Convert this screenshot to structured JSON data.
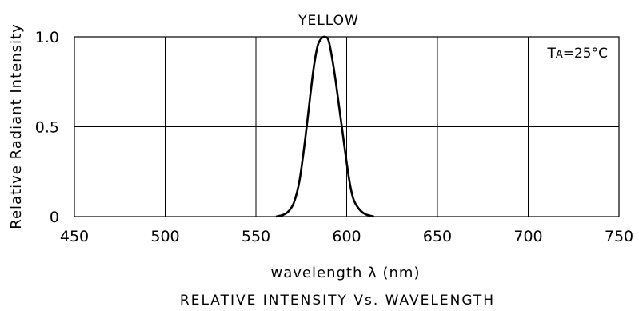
{
  "chart_data": {
    "type": "line",
    "title": "YELLOW",
    "xlabel": "wavelength λ (nm)",
    "ylabel": "Relative Radiant Intensity",
    "caption": "RELATIVE INTENSITY Vs. WAVELENGTH",
    "annotation": "TA=25°C",
    "xlim": [
      450,
      750
    ],
    "ylim": [
      0,
      1.0
    ],
    "x_ticks": [
      450,
      500,
      550,
      600,
      650,
      700,
      750
    ],
    "x_tick_labels": [
      "450",
      "500",
      "550",
      "600",
      "650",
      "700",
      "750"
    ],
    "y_ticks": [
      0,
      0.5,
      1.0
    ],
    "y_tick_labels": [
      "0",
      "0.5",
      "1.0"
    ],
    "grid": true,
    "series": [
      {
        "x": [
          561,
          565,
          568,
          571,
          574,
          577,
          580,
          582,
          584,
          586,
          588,
          590,
          592,
          594,
          596,
          598,
          600,
          602,
          604,
          607,
          610,
          613,
          615
        ],
        "y": [
          0.0,
          0.01,
          0.03,
          0.08,
          0.2,
          0.42,
          0.68,
          0.84,
          0.95,
          0.99,
          1.0,
          0.98,
          0.88,
          0.75,
          0.6,
          0.45,
          0.3,
          0.17,
          0.09,
          0.04,
          0.015,
          0.005,
          0.0
        ]
      }
    ]
  }
}
